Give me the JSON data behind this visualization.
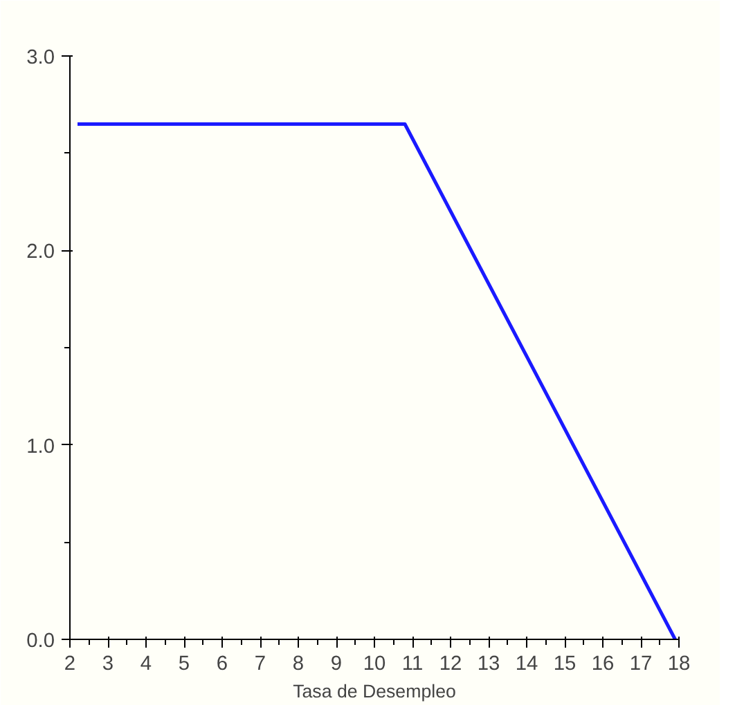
{
  "chart_data": {
    "type": "line",
    "xlabel": "Tasa de Desempleo",
    "x": [
      2.2,
      10.8,
      17.9
    ],
    "series": [
      {
        "color": "#1a1aff",
        "values": [
          2.65,
          2.65,
          0.0
        ]
      }
    ],
    "xlim": [
      2,
      18
    ],
    "xticks": [
      2,
      3,
      4,
      5,
      6,
      7,
      8,
      9,
      10,
      11,
      12,
      13,
      14,
      15,
      16,
      17,
      18
    ],
    "ylim": [
      0,
      3
    ],
    "yticks": [
      {
        "value": 0,
        "label": "0.0"
      },
      {
        "value": 1,
        "label": "1.0"
      },
      {
        "value": 2,
        "label": "2.0"
      },
      {
        "value": 3,
        "label": "3.0"
      }
    ],
    "grid": false
  }
}
